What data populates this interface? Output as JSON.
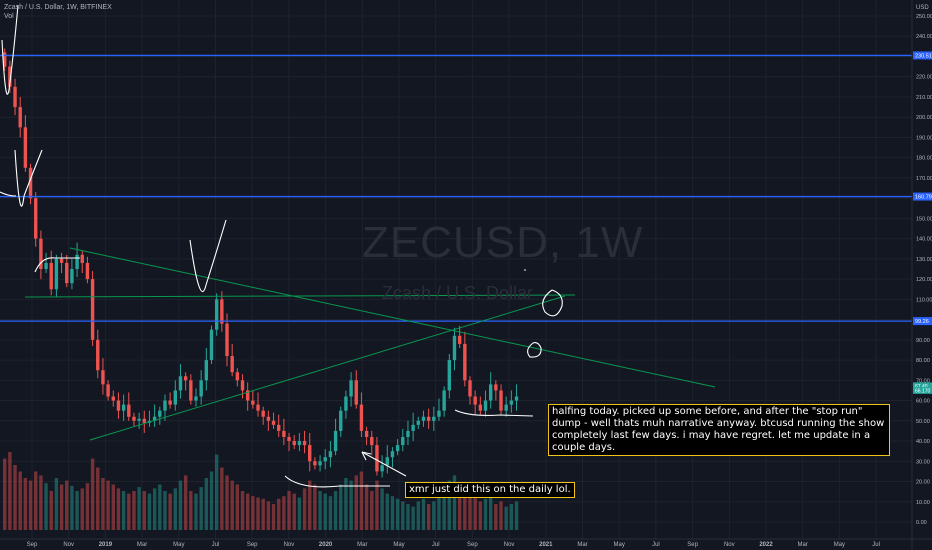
{
  "header": {
    "symbol_line": "Zcash / U.S. Dollar, 1W, BITFINEX",
    "vol_label": "Vol"
  },
  "watermark": {
    "ticker": "ZECUSD, 1W",
    "name": "Zcash / U.S. Dollar"
  },
  "axis": {
    "currency": "USD"
  },
  "annotations": {
    "main": "halfing today. picked up some before, and after the \"stop run\" dump - well thats muh narrative anyway. btcusd running the show completely last few days. i may have regret. let me update in a couple days.",
    "xmr": "xmr just did this on the daily lol."
  },
  "colors": {
    "background": "#131722",
    "up": "#26a69a",
    "down": "#ef5350",
    "hline": "#2962ff",
    "trendline": "#089950",
    "annotation_border": "#f0c419"
  },
  "chart_data": {
    "type": "candlestick",
    "ylim": [
      0,
      250
    ],
    "y_ticks": [
      0,
      10,
      20,
      30,
      40,
      50,
      60,
      70,
      80,
      90,
      100,
      110,
      120,
      130,
      140,
      150,
      160,
      170,
      180,
      190,
      200,
      210,
      220,
      230,
      240,
      250
    ],
    "x_ticks": [
      "Sep",
      "Nov",
      "2019",
      "Mar",
      "May",
      "Jul",
      "Sep",
      "Nov",
      "2020",
      "Mar",
      "May",
      "Jul",
      "Sep",
      "Nov",
      "2021",
      "Mar",
      "May",
      "Jul",
      "Sep",
      "Nov",
      "2022",
      "Mar",
      "May",
      "Jul"
    ],
    "horizontal_levels": [
      {
        "value": 230.51,
        "label": "230.51"
      },
      {
        "value": 160.79,
        "label": "160.79"
      },
      {
        "value": 99.26,
        "label": "99.26"
      }
    ],
    "price_badges": [
      "67.40",
      "66.170"
    ],
    "closes": [
      225,
      215,
      205,
      195,
      175,
      160,
      140,
      125,
      128,
      115,
      130,
      128,
      118,
      125,
      132,
      128,
      120,
      90,
      75,
      68,
      62,
      60,
      55,
      58,
      52,
      50,
      51,
      49,
      50,
      52,
      55,
      60,
      58,
      65,
      72,
      70,
      60,
      62,
      70,
      80,
      95,
      110,
      98,
      82,
      74,
      70,
      65,
      60,
      58,
      55,
      52,
      50,
      48,
      45,
      42,
      40,
      38,
      40,
      38,
      30,
      28,
      30,
      32,
      35,
      45,
      55,
      62,
      70,
      58,
      45,
      42,
      38,
      25,
      28,
      32,
      35,
      38,
      42,
      45,
      48,
      50,
      52,
      50,
      52,
      55,
      65,
      80,
      92,
      88,
      70,
      62,
      58,
      55,
      60,
      68,
      65,
      55,
      58,
      60,
      62
    ],
    "volumes": [
      55,
      60,
      50,
      45,
      40,
      38,
      45,
      42,
      36,
      30,
      40,
      35,
      38,
      34,
      30,
      32,
      36,
      55,
      48,
      40,
      38,
      35,
      32,
      30,
      28,
      30,
      33,
      30,
      28,
      32,
      35,
      30,
      28,
      32,
      38,
      42,
      30,
      28,
      33,
      40,
      45,
      58,
      48,
      42,
      38,
      35,
      30,
      28,
      26,
      25,
      24,
      22,
      20,
      24,
      26,
      30,
      28,
      25,
      32,
      38,
      35,
      30,
      28,
      26,
      30,
      35,
      40,
      38,
      42,
      45,
      35,
      30,
      38,
      32,
      28,
      26,
      24,
      22,
      20,
      18,
      22,
      24,
      20,
      22,
      26,
      30,
      38,
      42,
      35,
      30,
      28,
      25,
      22,
      24,
      26,
      20,
      22,
      18,
      20,
      22
    ]
  }
}
